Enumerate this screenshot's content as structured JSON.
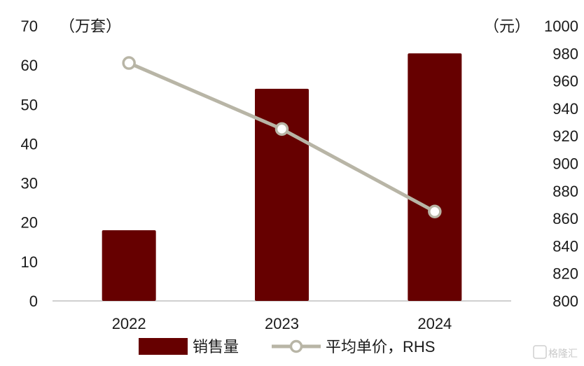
{
  "chart_data": {
    "type": "bar",
    "categories": [
      "2022",
      "2023",
      "2024"
    ],
    "series": [
      {
        "name": "销售量",
        "type": "bar",
        "axis": "left",
        "values": [
          18,
          54,
          63
        ],
        "color": "#660000"
      },
      {
        "name": "平均单价，RHS",
        "type": "line",
        "axis": "right",
        "values": [
          973,
          925,
          865
        ],
        "color": "#b8b5a6"
      }
    ],
    "y_left": {
      "unit": "（万套）",
      "ylim": [
        0,
        70
      ],
      "ticks": [
        "0",
        "10",
        "20",
        "30",
        "40",
        "50",
        "60",
        "70"
      ]
    },
    "y_right": {
      "unit": "（元）",
      "ylim": [
        800,
        1000
      ],
      "ticks": [
        "800",
        "820",
        "840",
        "860",
        "880",
        "900",
        "920",
        "940",
        "960",
        "980",
        "1000"
      ]
    },
    "grid": false,
    "legend_position": "bottom"
  },
  "watermark": "格隆汇"
}
